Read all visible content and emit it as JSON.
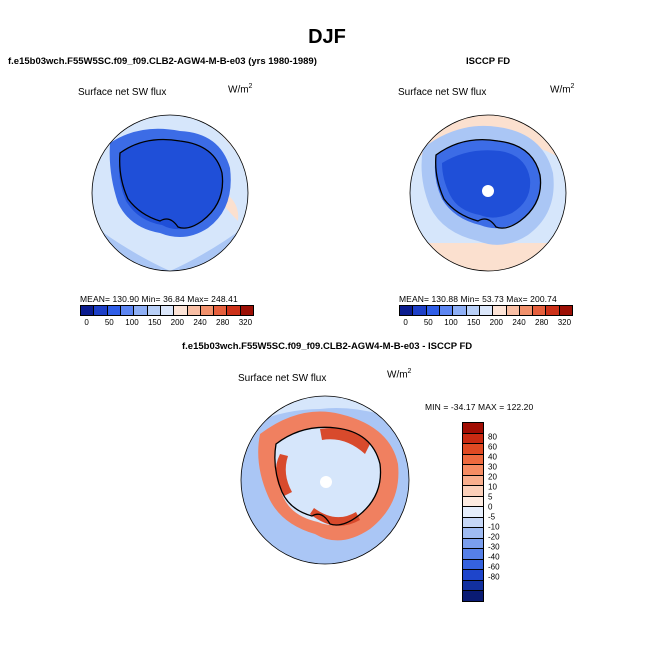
{
  "title": "DJF",
  "panels": [
    {
      "id": "model",
      "header": "f.e15b03wch.F55W5SC.f09_f09.CLB2-AGW4-M-B-e03 (yrs 1980-1989)",
      "field": "Surface net SW flux",
      "units_base": "W/m",
      "units_exp": "2",
      "stats": "MEAN= 130.90   Min=   36.84   Max= 248.41"
    },
    {
      "id": "obs",
      "header": "ISCCP FD",
      "field": "Surface net SW flux",
      "units_base": "W/m",
      "units_exp": "2",
      "stats": "MEAN= 130.88   Min=   53.73   Max= 200.74"
    },
    {
      "id": "diff",
      "header": "f.e15b03wch.F55W5SC.f09_f09.CLB2-AGW4-M-B-e03 - ISCCP FD",
      "field": "Surface net SW flux",
      "units_base": "W/m",
      "units_exp": "2",
      "stats": "MIN = -34.17  MAX = 122.20"
    }
  ],
  "colorbars": {
    "absolute": {
      "colors": [
        "#0b1c8f",
        "#1d3fc7",
        "#2f5ee8",
        "#5d86f2",
        "#8eaff5",
        "#b8cff7",
        "#dbe7fb",
        "#fce3d6",
        "#f8bea4",
        "#f1916c",
        "#e55f3d",
        "#cc3119",
        "#9c0f05"
      ],
      "labels": [
        "0",
        "50",
        "100",
        "150",
        "200",
        "240",
        "280",
        "320"
      ]
    },
    "difference": {
      "colors": [
        "#a10d03",
        "#c92a12",
        "#e04a23",
        "#ee6a3f",
        "#f68c63",
        "#f9ae8d",
        "#fbcfb9",
        "#fdebe1",
        "#e6eefc",
        "#c6d7f7",
        "#9fbbf2",
        "#7a9eee",
        "#5680e8",
        "#3562de",
        "#1e45cb",
        "#12309f",
        "#0a1b73"
      ],
      "labels": [
        "80",
        "60",
        "40",
        "30",
        "20",
        "10",
        "5",
        "0",
        "-5",
        "-10",
        "-20",
        "-30",
        "-40",
        "-60",
        "-80"
      ]
    }
  },
  "map_colors": {
    "ice_deep": "#1f4fd8",
    "ice_mid": "#3c6ce6",
    "ocean_light": "#d6e6fb",
    "ocean_pale": "#e8f0fd",
    "ocean_mid": "#aac6f5",
    "warm_light": "#fbe0cf",
    "diff_red": "#f08060",
    "diff_red_dark": "#d84a2c",
    "coast": "#000000"
  }
}
